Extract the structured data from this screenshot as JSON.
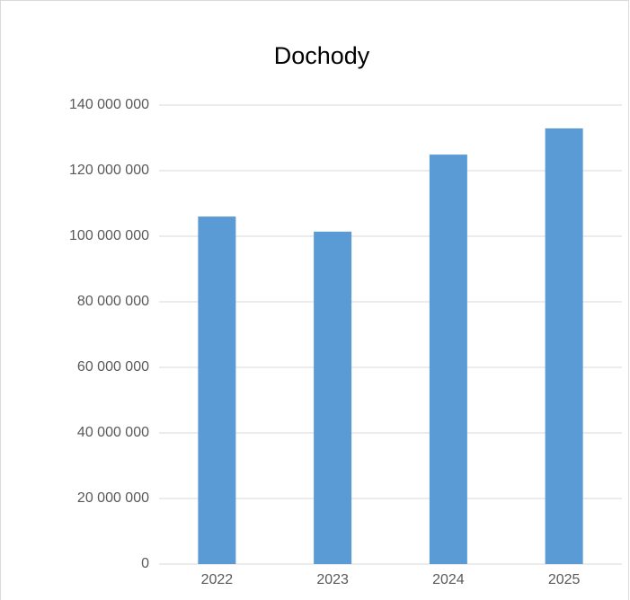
{
  "chart_data": {
    "type": "bar",
    "title": "Dochody",
    "categories": [
      "2022",
      "2023",
      "2024",
      "2025"
    ],
    "values": [
      106000000,
      101400000,
      124900000,
      132900000
    ],
    "color": "#5b9bd5",
    "ylim": [
      0,
      140000000
    ],
    "yticks": [
      0,
      {
        "value": 20000000,
        "label": "20 000 000"
      },
      {
        "value": 40000000,
        "label": "40 000 000"
      },
      {
        "value": 60000000,
        "label": "60 000 000"
      },
      {
        "value": 80000000,
        "label": "80 000 000"
      },
      {
        "value": 100000000,
        "label": "100 000 000"
      },
      {
        "value": 120000000,
        "label": "120 000 000"
      },
      {
        "value": 140000000,
        "label": "140 000 000"
      }
    ],
    "grid": true
  }
}
